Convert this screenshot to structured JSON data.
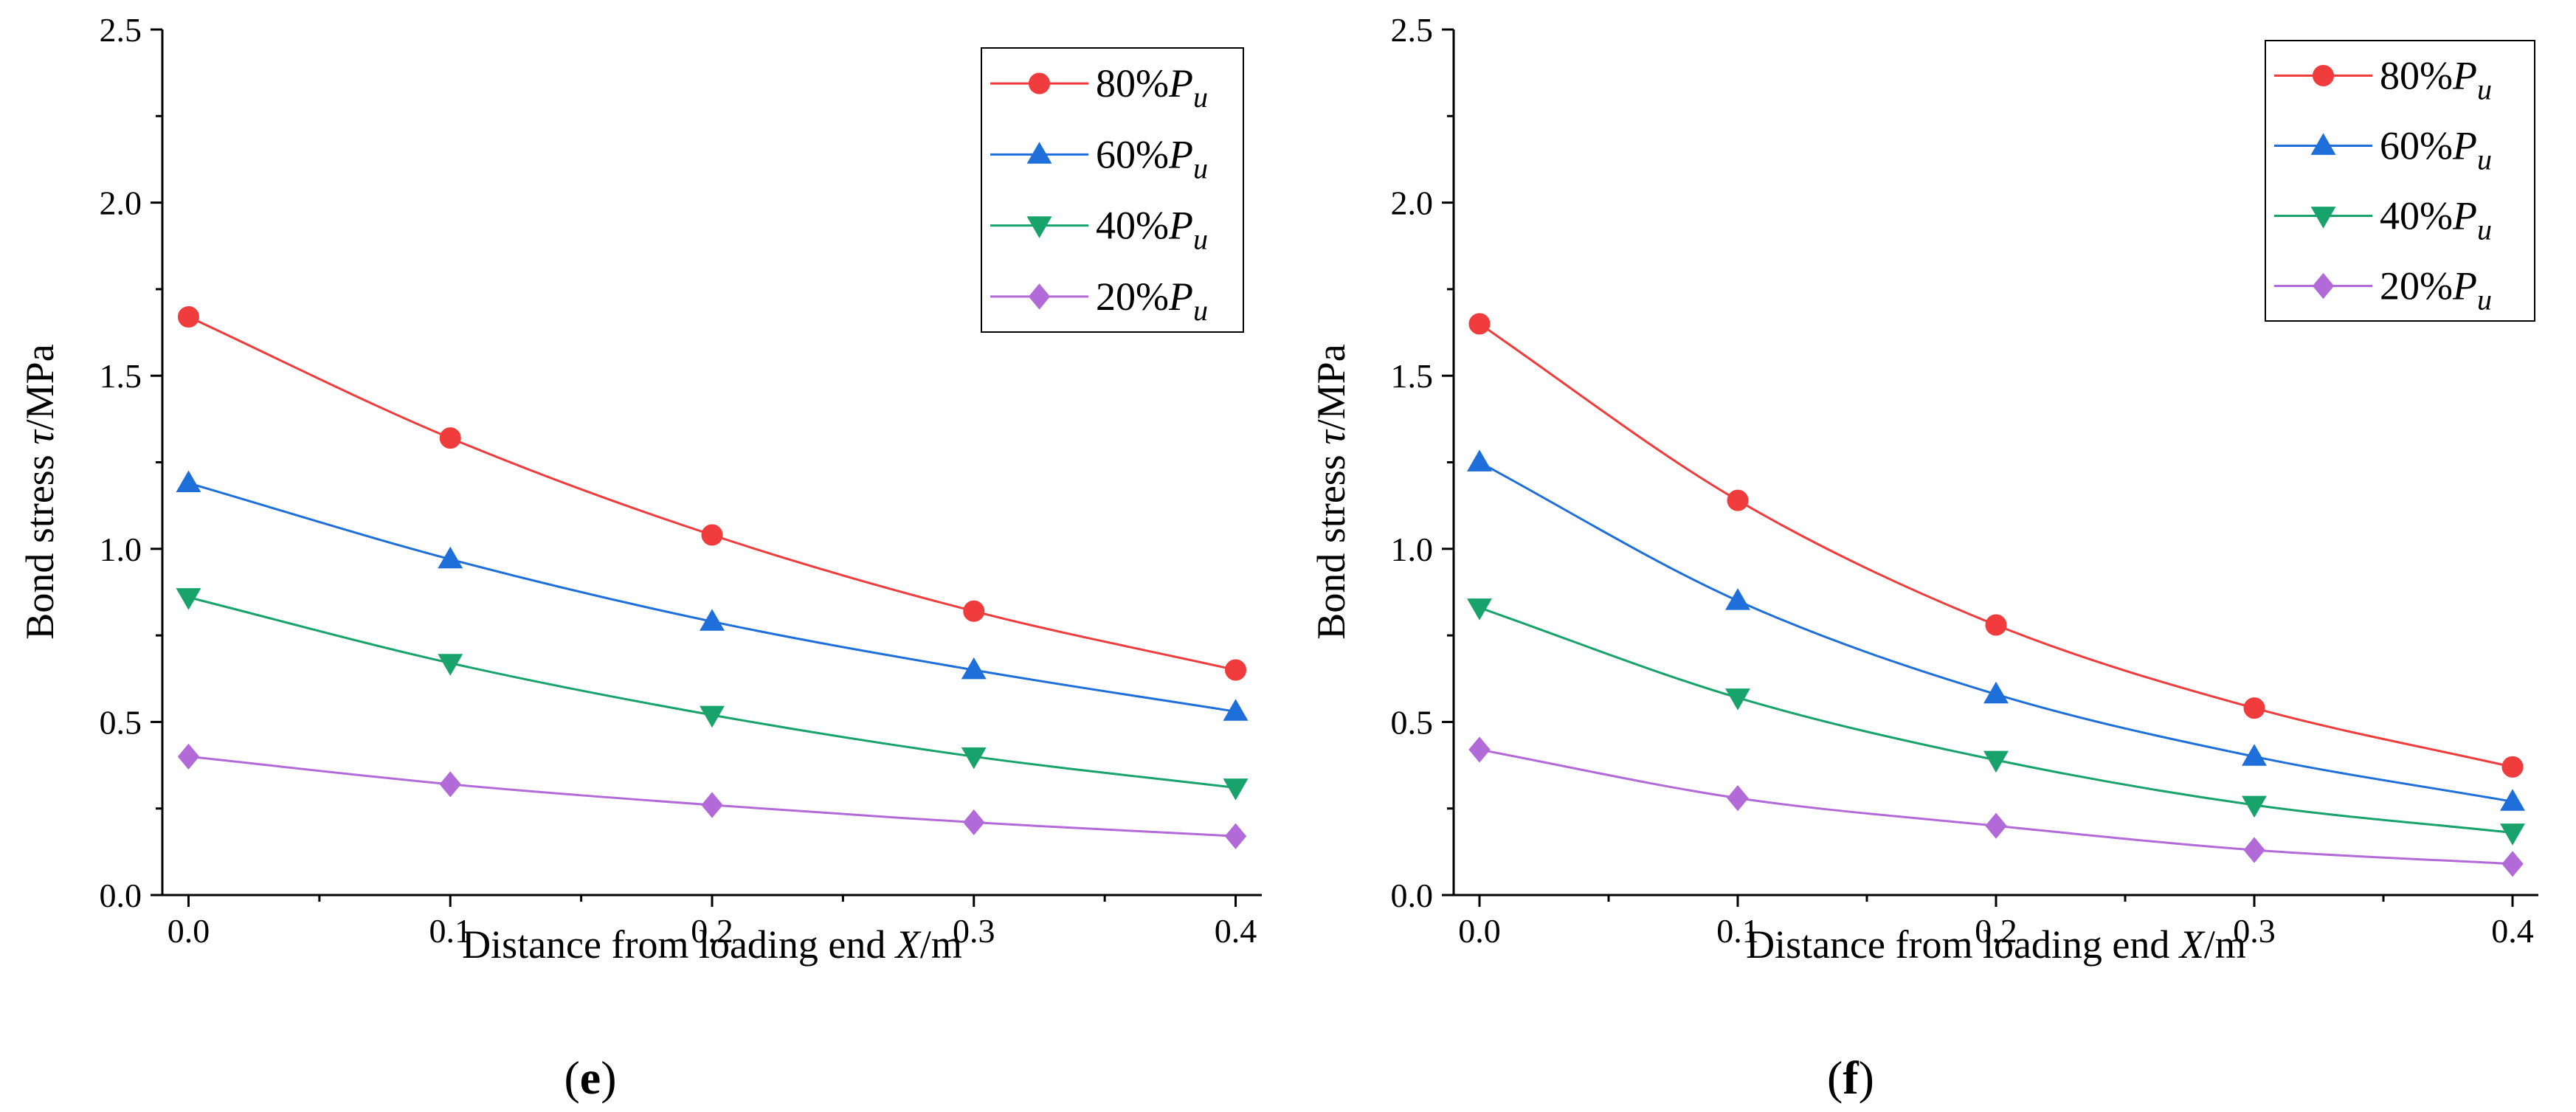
{
  "colors": {
    "80": "#f03c3c",
    "60": "#1e6fd9",
    "40": "#17a36b",
    "20": "#b36ad9"
  },
  "chart_data": [
    {
      "type": "line",
      "panel_label": "e",
      "xlabel_prefix": "Distance from loading end ",
      "xlabel_var": "X",
      "xlabel_suffix": "/m",
      "ylabel_prefix": "Bond stress ",
      "ylabel_var": "τ",
      "ylabel_suffix": "/MPa",
      "xlim": [
        -0.01,
        0.41
      ],
      "ylim": [
        0,
        2.5
      ],
      "xticks": [
        "0.0",
        "0.1",
        "0.2",
        "0.3",
        "0.4"
      ],
      "yticks": [
        "0.0",
        "0.5",
        "1.0",
        "1.5",
        "2.0",
        "2.5"
      ],
      "legend_position": "top-right",
      "grid": false,
      "x": [
        0.0,
        0.1,
        0.2,
        0.3,
        0.4
      ],
      "series": [
        {
          "name_pct": "80%",
          "name_var": "P",
          "name_sub": "u",
          "marker": "circle",
          "color_key": "80",
          "values": [
            1.67,
            1.32,
            1.04,
            0.82,
            0.65
          ]
        },
        {
          "name_pct": "60%",
          "name_var": "P",
          "name_sub": "u",
          "marker": "triangle-up",
          "color_key": "60",
          "values": [
            1.19,
            0.97,
            0.79,
            0.65,
            0.53
          ]
        },
        {
          "name_pct": "40%",
          "name_var": "P",
          "name_sub": "u",
          "marker": "triangle-down",
          "color_key": "40",
          "values": [
            0.86,
            0.67,
            0.52,
            0.4,
            0.31
          ]
        },
        {
          "name_pct": "20%",
          "name_var": "P",
          "name_sub": "u",
          "marker": "diamond",
          "color_key": "20",
          "values": [
            0.4,
            0.32,
            0.26,
            0.21,
            0.17
          ]
        }
      ]
    },
    {
      "type": "line",
      "panel_label": "f",
      "xlabel_prefix": "Distance from loading end ",
      "xlabel_var": "X",
      "xlabel_suffix": "/m",
      "ylabel_prefix": "Bond stress ",
      "ylabel_var": "τ",
      "ylabel_suffix": "/MPa",
      "xlim": [
        -0.01,
        0.41
      ],
      "ylim": [
        0,
        2.5
      ],
      "xticks": [
        "0.0",
        "0.1",
        "0.2",
        "0.3",
        "0.4"
      ],
      "yticks": [
        "0.0",
        "0.5",
        "1.0",
        "1.5",
        "2.0",
        "2.5"
      ],
      "legend_position": "top-right",
      "grid": false,
      "x": [
        0.0,
        0.1,
        0.2,
        0.3,
        0.4
      ],
      "series": [
        {
          "name_pct": "80%",
          "name_var": "P",
          "name_sub": "u",
          "marker": "circle",
          "color_key": "80",
          "values": [
            1.65,
            1.14,
            0.78,
            0.54,
            0.37
          ]
        },
        {
          "name_pct": "60%",
          "name_var": "P",
          "name_sub": "u",
          "marker": "triangle-up",
          "color_key": "60",
          "values": [
            1.25,
            0.85,
            0.58,
            0.4,
            0.27
          ]
        },
        {
          "name_pct": "40%",
          "name_var": "P",
          "name_sub": "u",
          "marker": "triangle-down",
          "color_key": "40",
          "values": [
            0.83,
            0.57,
            0.39,
            0.26,
            0.18
          ]
        },
        {
          "name_pct": "20%",
          "name_var": "P",
          "name_sub": "u",
          "marker": "diamond",
          "color_key": "20",
          "values": [
            0.42,
            0.28,
            0.2,
            0.13,
            0.09
          ]
        }
      ]
    }
  ]
}
